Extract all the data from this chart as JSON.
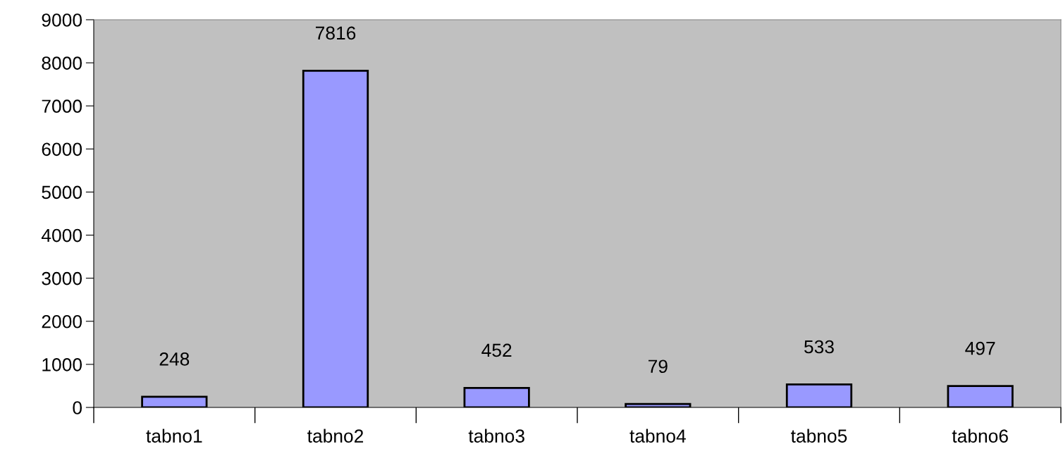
{
  "chart_data": {
    "type": "bar",
    "categories": [
      "tabno1",
      "tabno2",
      "tabno3",
      "tabno4",
      "tabno5",
      "tabno6"
    ],
    "values": [
      248,
      7816,
      452,
      79,
      533,
      497
    ],
    "color": "#9999ff",
    "ylim": [
      0,
      9000
    ],
    "yticks": [
      0,
      1000,
      2000,
      3000,
      4000,
      5000,
      6000,
      7000,
      8000,
      9000
    ],
    "data_labels": true,
    "grid": false,
    "legend": false
  }
}
